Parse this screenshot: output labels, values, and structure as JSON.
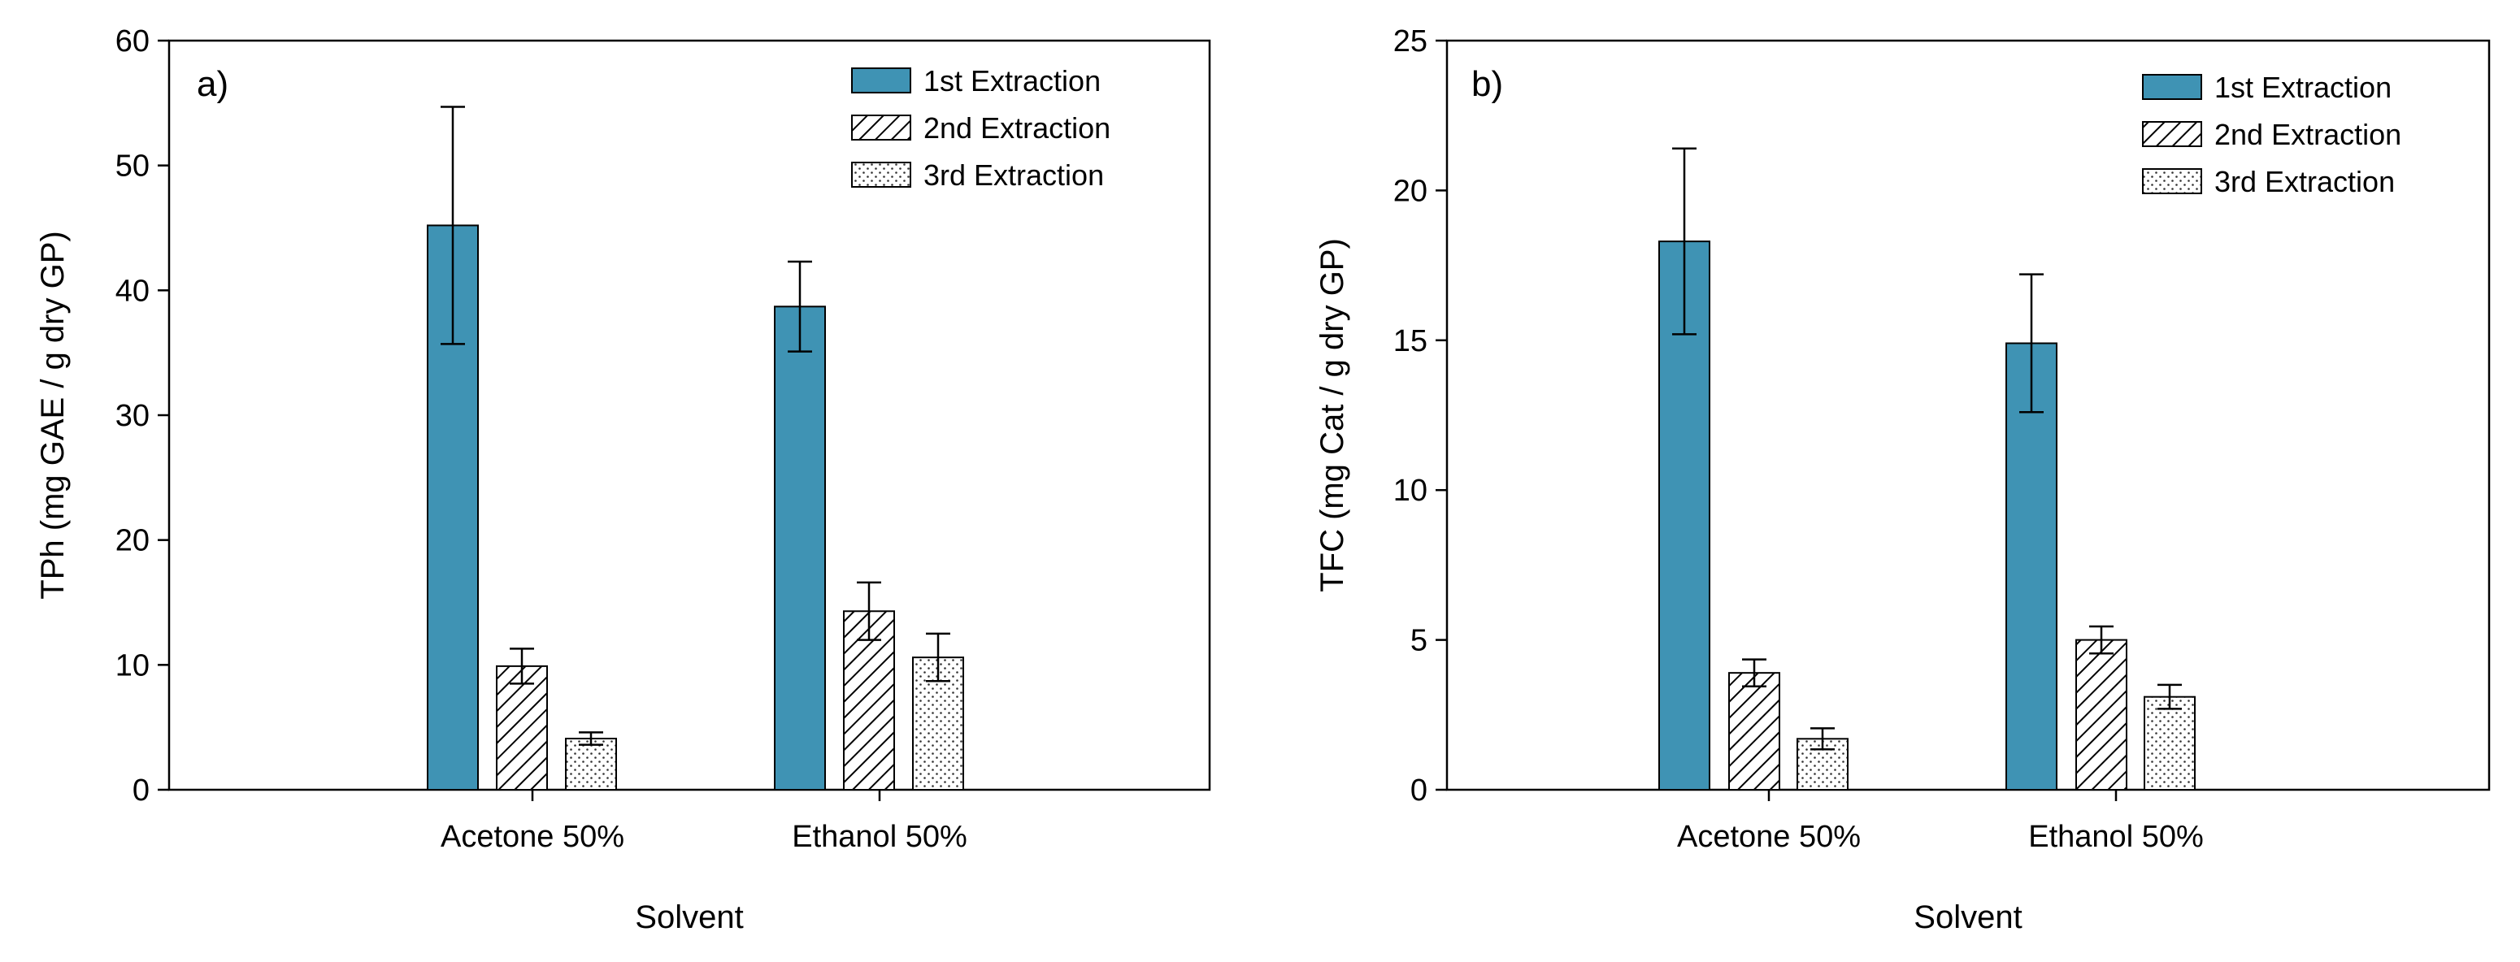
{
  "chart_data": [
    {
      "type": "bar",
      "panel_label": "a)",
      "title": "",
      "xlabel": "Solvent",
      "ylabel": "TPh (mg GAE / g dry GP)",
      "ylim": [
        0,
        60
      ],
      "yticks": [
        0,
        10,
        20,
        30,
        40,
        50,
        60
      ],
      "categories": [
        "Acetone 50%",
        "Ethanol 50%"
      ],
      "legend_position": "top-right",
      "series": [
        {
          "name": "1st Extraction",
          "style": "solid",
          "values": [
            45.2,
            38.7
          ],
          "errors": [
            9.5,
            3.6
          ]
        },
        {
          "name": "2nd Extraction",
          "style": "hatch",
          "values": [
            9.9,
            14.3
          ],
          "errors": [
            1.4,
            2.3
          ]
        },
        {
          "name": "3rd Extraction",
          "style": "dots",
          "values": [
            4.1,
            10.6
          ],
          "errors": [
            0.5,
            1.9
          ]
        }
      ]
    },
    {
      "type": "bar",
      "panel_label": "b)",
      "title": "",
      "xlabel": "Solvent",
      "ylabel": "TFC (mg Cat / g dry GP)",
      "ylim": [
        0,
        25
      ],
      "yticks": [
        0,
        5,
        10,
        15,
        20,
        25
      ],
      "categories": [
        "Acetone 50%",
        "Ethanol 50%"
      ],
      "legend_position": "top-right",
      "series": [
        {
          "name": "1st Extraction",
          "style": "solid",
          "values": [
            18.3,
            14.9
          ],
          "errors": [
            3.1,
            2.3
          ]
        },
        {
          "name": "2nd Extraction",
          "style": "hatch",
          "values": [
            3.9,
            5.0
          ],
          "errors": [
            0.45,
            0.45
          ]
        },
        {
          "name": "3rd Extraction",
          "style": "dots",
          "values": [
            1.7,
            3.1
          ],
          "errors": [
            0.35,
            0.4
          ]
        }
      ]
    }
  ],
  "colors": {
    "bar_fill": "#3f93b4",
    "outline": "#000000"
  }
}
